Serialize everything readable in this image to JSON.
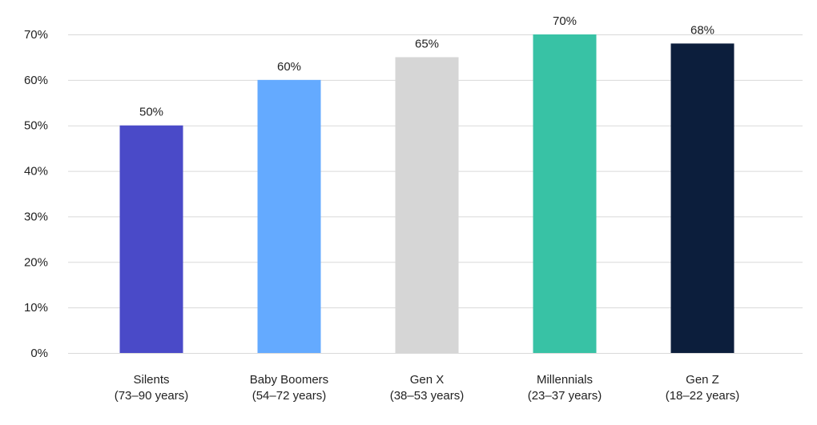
{
  "chart_data": {
    "type": "bar",
    "title": "",
    "xlabel": "",
    "ylabel": "",
    "categories": [
      {
        "name": "Silents",
        "range": "(73–90 years)"
      },
      {
        "name": "Baby Boomers",
        "range": "(54–72 years)"
      },
      {
        "name": "Gen X",
        "range": "(38–53 years)"
      },
      {
        "name": "Millennials",
        "range": "(23–37 years)"
      },
      {
        "name": "Gen Z",
        "range": "(18–22 years)"
      }
    ],
    "values": [
      50,
      60,
      65,
      70,
      68
    ],
    "value_labels": [
      "50%",
      "60%",
      "65%",
      "70%",
      "68%"
    ],
    "colors": [
      "#4a4ac8",
      "#64aaff",
      "#d6d6d6",
      "#38c2a5",
      "#0c1e3c"
    ],
    "ylim": [
      0,
      70
    ],
    "yticks": [
      0,
      10,
      20,
      30,
      40,
      50,
      60,
      70
    ],
    "ytick_labels": [
      "0%",
      "10%",
      "20%",
      "30%",
      "40%",
      "50%",
      "60%",
      "70%"
    ],
    "grid": true,
    "legend": "none"
  }
}
